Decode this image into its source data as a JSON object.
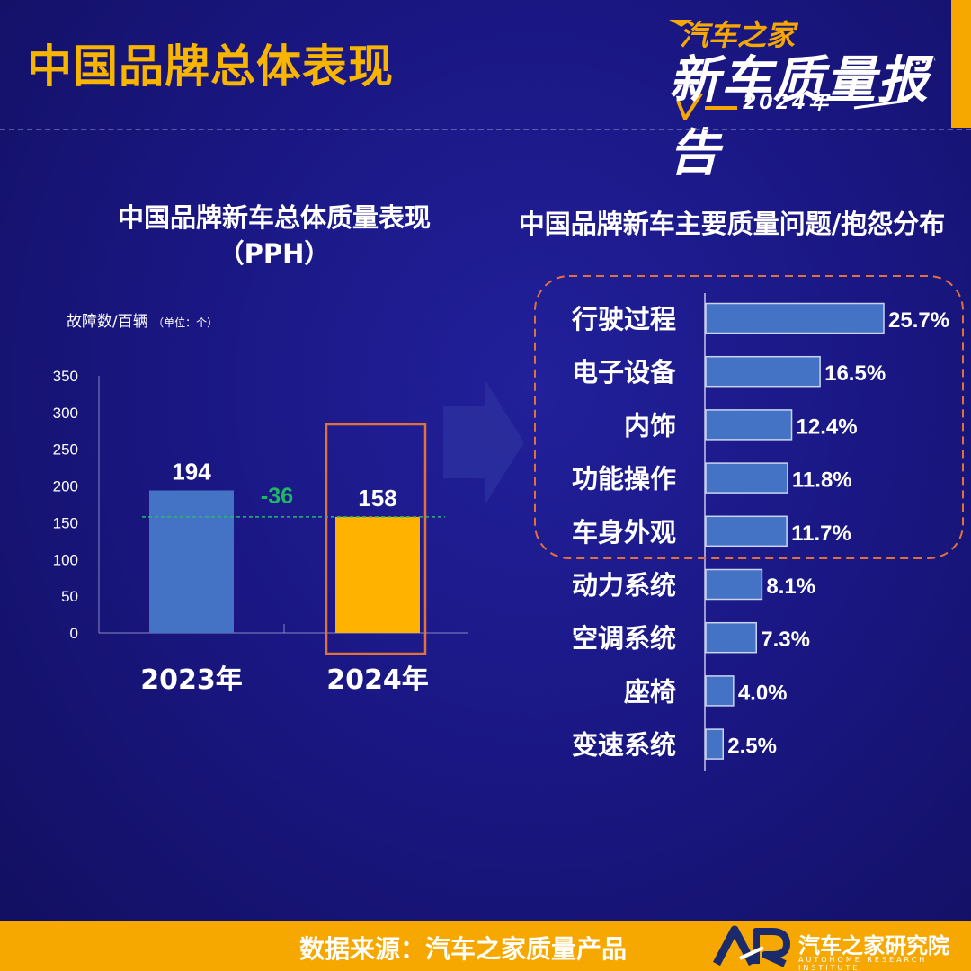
{
  "page_title": "中国品牌总体表现",
  "logo": {
    "line1": "汽车之家",
    "line2": "新车质量报告",
    "line3": "2024年"
  },
  "colors": {
    "background": "#1a1784",
    "accent": "#f7a800",
    "bar_2023": "#4472c4",
    "bar_2024": "#ffb300",
    "diff_text": "#1fb964",
    "highlight_box": "#e2703a",
    "hbar": "#4472c4"
  },
  "footer": {
    "source": "数据来源：汽车之家质量产品",
    "org": "汽车之家研究院",
    "org_en": "AUTOHOME RESEARCH INSTITUTE",
    "logo_text": "AR"
  },
  "chart_data": [
    {
      "type": "bar",
      "title": "中国品牌新车总体质量表现",
      "subtitle": "（PPH）",
      "ylabel": "故障数/百辆",
      "ylabel_unit": "（单位：个）",
      "categories": [
        "2023年",
        "2024年"
      ],
      "values": [
        194,
        158
      ],
      "data_labels": [
        "194",
        "158"
      ],
      "ylim": [
        0,
        350
      ],
      "yticks": [
        0,
        50,
        100,
        150,
        200,
        250,
        300,
        350
      ],
      "annotation": "-36",
      "highlight_category": "2024年",
      "reference_line_value": 158,
      "grid": false
    },
    {
      "type": "bar",
      "orientation": "horizontal",
      "title": "中国品牌新车主要质量问题/抱怨分布",
      "categories": [
        "行驶过程",
        "电子设备",
        "内饰",
        "功能操作",
        "车身外观",
        "动力系统",
        "空调系统",
        "座椅",
        "变速系统"
      ],
      "values": [
        25.7,
        16.5,
        12.4,
        11.8,
        11.7,
        8.1,
        7.3,
        4.0,
        2.5
      ],
      "data_labels": [
        "25.7%",
        "16.5%",
        "12.4%",
        "11.8%",
        "11.7%",
        "8.1%",
        "7.3%",
        "4.0%",
        "2.5%"
      ],
      "highlighted_top_n": 5,
      "grid": false
    }
  ]
}
